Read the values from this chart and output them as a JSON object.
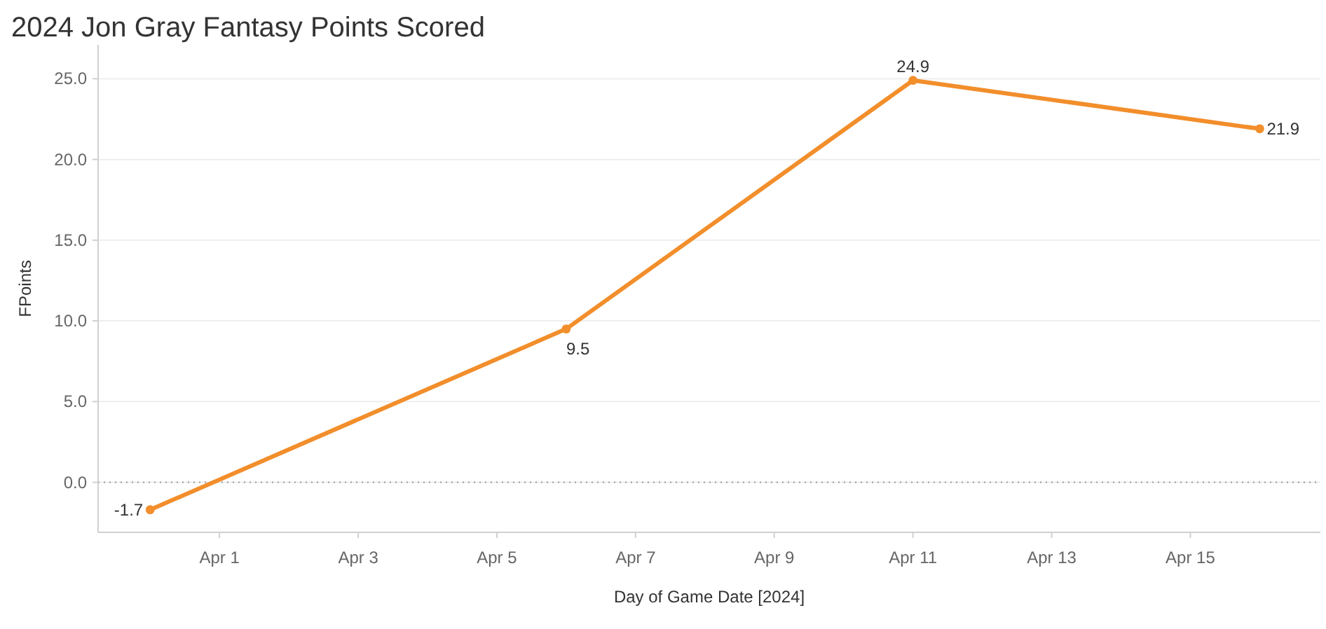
{
  "chart_data": {
    "type": "line",
    "title": "2024 Jon Gray Fantasy Points Scored",
    "xlabel": "Day of Game Date [2024]",
    "ylabel": "FPoints",
    "x": [
      "2024-03-31",
      "2024-04-06",
      "2024-04-11",
      "2024-04-16"
    ],
    "series": [
      {
        "color": "#f28e2b",
        "values": [
          -1.7,
          9.5,
          24.9,
          21.9
        ]
      }
    ],
    "xlim": [
      "2024-03-30T06:00",
      "2024-04-16T21:00"
    ],
    "xticks": [
      {
        "value": "2024-04-01",
        "label": "Apr 1"
      },
      {
        "value": "2024-04-03",
        "label": "Apr 3"
      },
      {
        "value": "2024-04-05",
        "label": "Apr 5"
      },
      {
        "value": "2024-04-07",
        "label": "Apr 7"
      },
      {
        "value": "2024-04-09",
        "label": "Apr 9"
      },
      {
        "value": "2024-04-11",
        "label": "Apr 11"
      },
      {
        "value": "2024-04-13",
        "label": "Apr 13"
      },
      {
        "value": "2024-04-15",
        "label": "Apr 15"
      }
    ],
    "ylim": [
      -3.1,
      27.1
    ],
    "yticks": [
      {
        "value": 0,
        "label": "0.0"
      },
      {
        "value": 5,
        "label": "5.0"
      },
      {
        "value": 10,
        "label": "10.0"
      },
      {
        "value": 15,
        "label": "15.0"
      },
      {
        "value": 20,
        "label": "20.0"
      },
      {
        "value": 25,
        "label": "25.0"
      }
    ],
    "ref_lines": [
      {
        "axis": "y",
        "value": 0,
        "color": "#999999",
        "line_style": "dotted"
      }
    ],
    "grid": "y",
    "marker": "circle",
    "line_style": "solid",
    "data_labels": true
  }
}
